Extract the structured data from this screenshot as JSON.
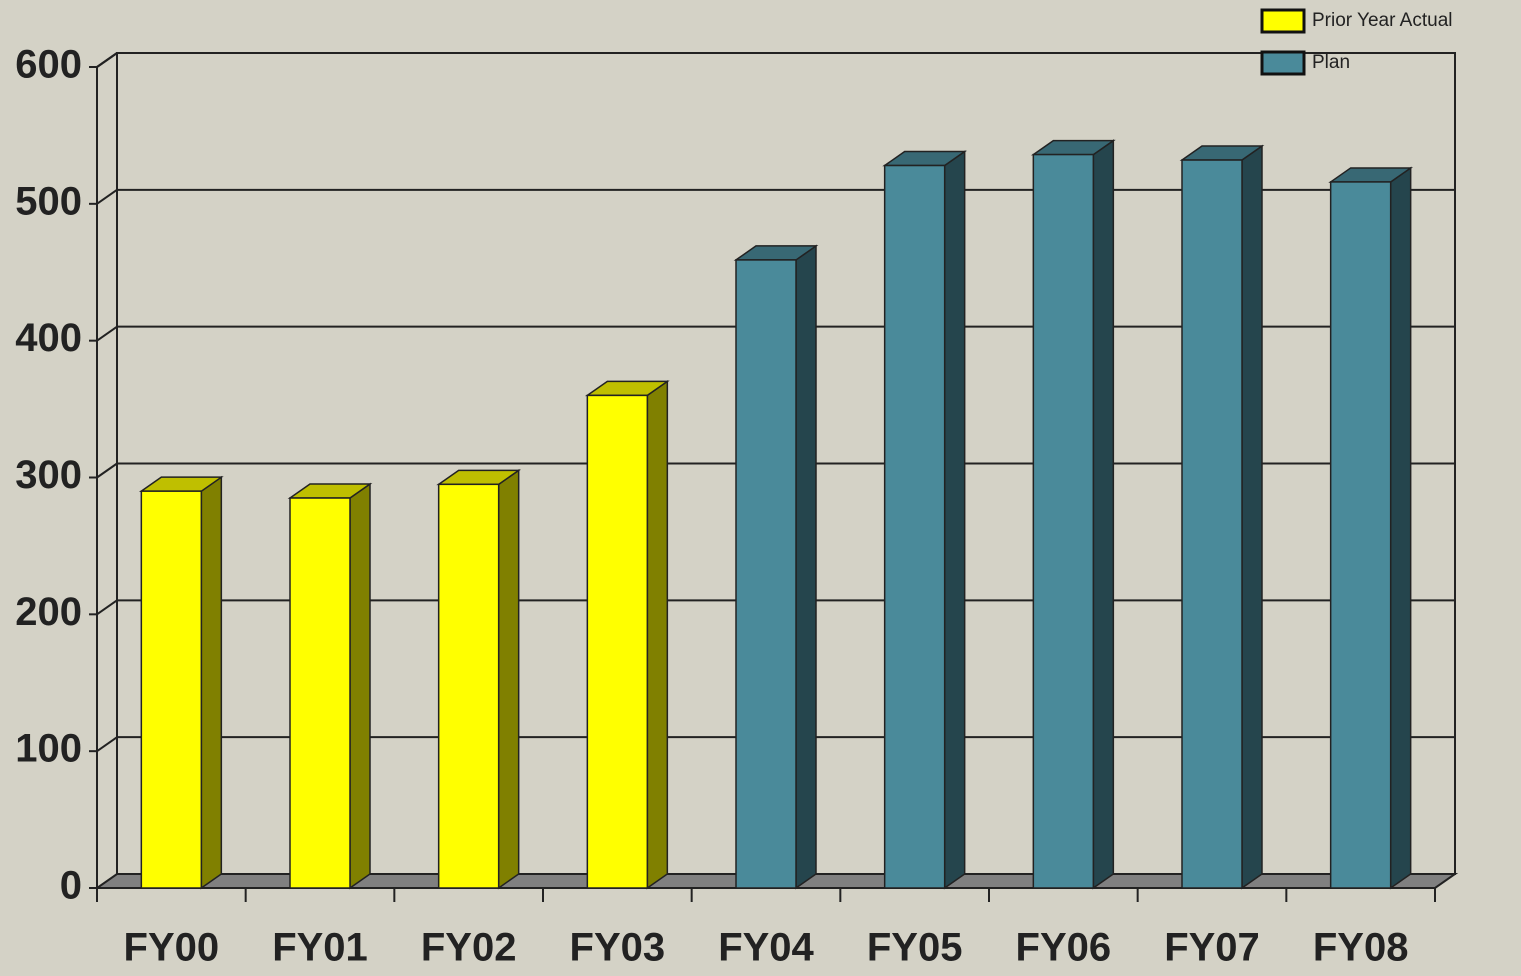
{
  "chart_data": {
    "type": "bar3d",
    "categories": [
      "FY00",
      "FY01",
      "FY02",
      "FY03",
      "FY04",
      "FY05",
      "FY06",
      "FY07",
      "FY08"
    ],
    "series": [
      {
        "name": "Prior Year Actual",
        "color": "#ffff00",
        "values": [
          290,
          285,
          295,
          360,
          null,
          null,
          null,
          null,
          null
        ]
      },
      {
        "name": "Plan",
        "color": "#4a8a9a",
        "values": [
          null,
          null,
          null,
          null,
          459,
          528,
          536,
          532,
          516
        ]
      }
    ],
    "ylim": [
      0,
      600
    ],
    "yticks": [
      0,
      100,
      200,
      300,
      400,
      500,
      600
    ],
    "grid": true,
    "legend": "top-right"
  }
}
